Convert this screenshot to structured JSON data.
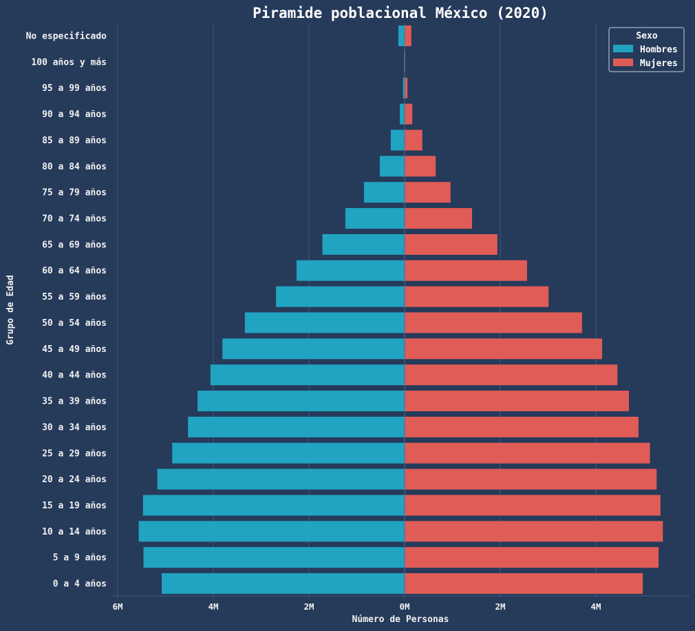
{
  "colors": {
    "background": "#263a5a",
    "grid": "#3a5a82",
    "hombres": "#21a3c2",
    "mujeres": "#e05c57",
    "text": "#f2f2f2"
  },
  "chart_data": {
    "type": "bar",
    "orientation": "horizontal",
    "title": "Piramide poblacional México (2020)",
    "xlabel": "Número de Personas",
    "ylabel": "Grupo de Edad",
    "xlim": [
      -6000000,
      6000000
    ],
    "x_tick_values": [
      -6000000,
      -4000000,
      -2000000,
      0,
      2000000,
      4000000
    ],
    "x_tick_labels": [
      "6M",
      "4M",
      "2M",
      "0M",
      "2M",
      "4M"
    ],
    "grid": "vertical",
    "legend": {
      "title": "Sexo",
      "position": "top-right",
      "entries": [
        "Hombres",
        "Mujeres"
      ]
    },
    "categories": [
      "No especificado",
      "100 años y más",
      "95 a 99 años",
      "90 a 94 años",
      "85 a 89 años",
      "80 a 84 años",
      "75 a 79 años",
      "70 a 74 años",
      "65 a 69 años",
      "60 a 64 años",
      "55 a 59 años",
      "50 a 54 años",
      "45 a 49 años",
      "40 a 44 años",
      "35 a 39 años",
      "30 a 34 años",
      "25 a 29 años",
      "20 a 24 años",
      "15 a 19 años",
      "10 a 14 años",
      "5 a 9 años",
      "0 a 4 años"
    ],
    "series": [
      {
        "name": "Hombres",
        "values": [
          130000,
          6000,
          35000,
          100000,
          290000,
          520000,
          850000,
          1240000,
          1720000,
          2260000,
          2690000,
          3340000,
          3810000,
          4060000,
          4330000,
          4530000,
          4860000,
          5170000,
          5470000,
          5560000,
          5460000,
          5080000
        ]
      },
      {
        "name": "Mujeres",
        "values": [
          140000,
          10000,
          60000,
          160000,
          370000,
          650000,
          960000,
          1410000,
          1940000,
          2560000,
          3010000,
          3710000,
          4130000,
          4450000,
          4690000,
          4890000,
          5130000,
          5270000,
          5350000,
          5400000,
          5310000,
          4980000
        ]
      }
    ]
  }
}
